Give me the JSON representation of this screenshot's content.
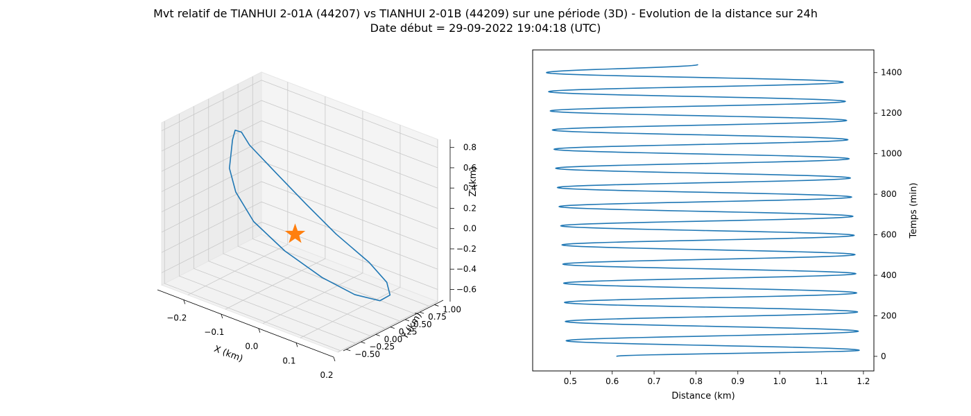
{
  "title_line1": "Mvt relatif de TIANHUI 2-01A (44207) vs TIANHUI 2-01B (44209) sur une période (3D) - Evolution de la distance sur 24h",
  "title_line2": "Date début = 29-09-2022 19:04:18 (UTC)",
  "chart_data": [
    {
      "type": "line3d",
      "xlabel": "X (km)",
      "ylabel": "Y (km)",
      "zlabel": "Z (km)",
      "x_ticks": [
        "−0.2",
        "−0.1",
        "0.0",
        "0.1",
        "0.2"
      ],
      "y_ticks": [
        "−0.50",
        "−0.25",
        "0.00",
        "0.25",
        "0.50",
        "0.75",
        "1.00"
      ],
      "z_ticks": [
        "−0.6",
        "−0.4",
        "−0.2",
        "0.0",
        "0.2",
        "0.4",
        "0.6",
        "0.8"
      ],
      "xlim": [
        -0.27,
        0.2
      ],
      "ylim": [
        -0.55,
        1.15
      ],
      "zlim": [
        -0.72,
        0.88
      ],
      "grid": true,
      "series": [
        {
          "color": "#1f77b4",
          "points": [
            [
              -0.12,
              -0.3,
              0.85
            ],
            [
              -0.16,
              0.0,
              0.8
            ],
            [
              -0.19,
              0.3,
              0.65
            ],
            [
              -0.2,
              0.5,
              0.45
            ],
            [
              -0.17,
              0.75,
              0.15
            ],
            [
              -0.12,
              0.95,
              -0.15
            ],
            [
              -0.06,
              1.08,
              -0.4
            ],
            [
              0.02,
              1.13,
              -0.58
            ],
            [
              0.08,
              1.05,
              -0.67
            ],
            [
              0.12,
              0.85,
              -0.68
            ],
            [
              0.14,
              0.55,
              -0.62
            ],
            [
              0.12,
              0.25,
              -0.5
            ],
            [
              0.08,
              -0.05,
              -0.3
            ],
            [
              0.02,
              -0.3,
              -0.05
            ],
            [
              -0.04,
              -0.45,
              0.2
            ],
            [
              -0.08,
              -0.5,
              0.45
            ],
            [
              -0.1,
              -0.48,
              0.65
            ],
            [
              -0.12,
              -0.3,
              0.85
            ]
          ]
        }
      ],
      "marker": {
        "shape": "star",
        "color": "#ff7f0e",
        "point": [
          0.0,
          0.0,
          0.0
        ]
      }
    },
    {
      "type": "line",
      "xlabel": "Distance (km)",
      "ylabel": "Temps (min)",
      "x_ticks": [
        "0.5",
        "0.6",
        "0.7",
        "0.8",
        "0.9",
        "1.0",
        "1.1",
        "1.2"
      ],
      "y_ticks": [
        "0",
        "200",
        "400",
        "600",
        "800",
        "1000",
        "1200",
        "1400"
      ],
      "xlim": [
        0.41,
        1.225
      ],
      "ylim": [
        -72,
        1512
      ],
      "y_ticks_position": "right",
      "series": [
        {
          "color": "#1f77b4",
          "period_min": 94.5,
          "t_max_min": 1440,
          "start": {
            "t": 0,
            "d": 0.61
          },
          "end": {
            "t": 1440,
            "d": 0.805
          },
          "peaks": [
            {
              "t": 30,
              "d": 1.19
            },
            {
              "t": 124,
              "d": 1.188
            },
            {
              "t": 219,
              "d": 1.186
            },
            {
              "t": 313,
              "d": 1.184
            },
            {
              "t": 408,
              "d": 1.182
            },
            {
              "t": 502,
              "d": 1.18
            },
            {
              "t": 597,
              "d": 1.178
            },
            {
              "t": 691,
              "d": 1.175
            },
            {
              "t": 786,
              "d": 1.172
            },
            {
              "t": 880,
              "d": 1.169
            },
            {
              "t": 975,
              "d": 1.166
            },
            {
              "t": 1069,
              "d": 1.163
            },
            {
              "t": 1164,
              "d": 1.16
            },
            {
              "t": 1258,
              "d": 1.157
            },
            {
              "t": 1353,
              "d": 1.152
            }
          ],
          "troughs": [
            {
              "t": 77,
              "d": 0.49
            },
            {
              "t": 172,
              "d": 0.488
            },
            {
              "t": 266,
              "d": 0.486
            },
            {
              "t": 361,
              "d": 0.484
            },
            {
              "t": 455,
              "d": 0.482
            },
            {
              "t": 550,
              "d": 0.48
            },
            {
              "t": 644,
              "d": 0.477
            },
            {
              "t": 739,
              "d": 0.473
            },
            {
              "t": 833,
              "d": 0.469
            },
            {
              "t": 928,
              "d": 0.465
            },
            {
              "t": 1022,
              "d": 0.461
            },
            {
              "t": 1117,
              "d": 0.457
            },
            {
              "t": 1211,
              "d": 0.452
            },
            {
              "t": 1306,
              "d": 0.448
            },
            {
              "t": 1400,
              "d": 0.443
            }
          ]
        }
      ]
    }
  ]
}
